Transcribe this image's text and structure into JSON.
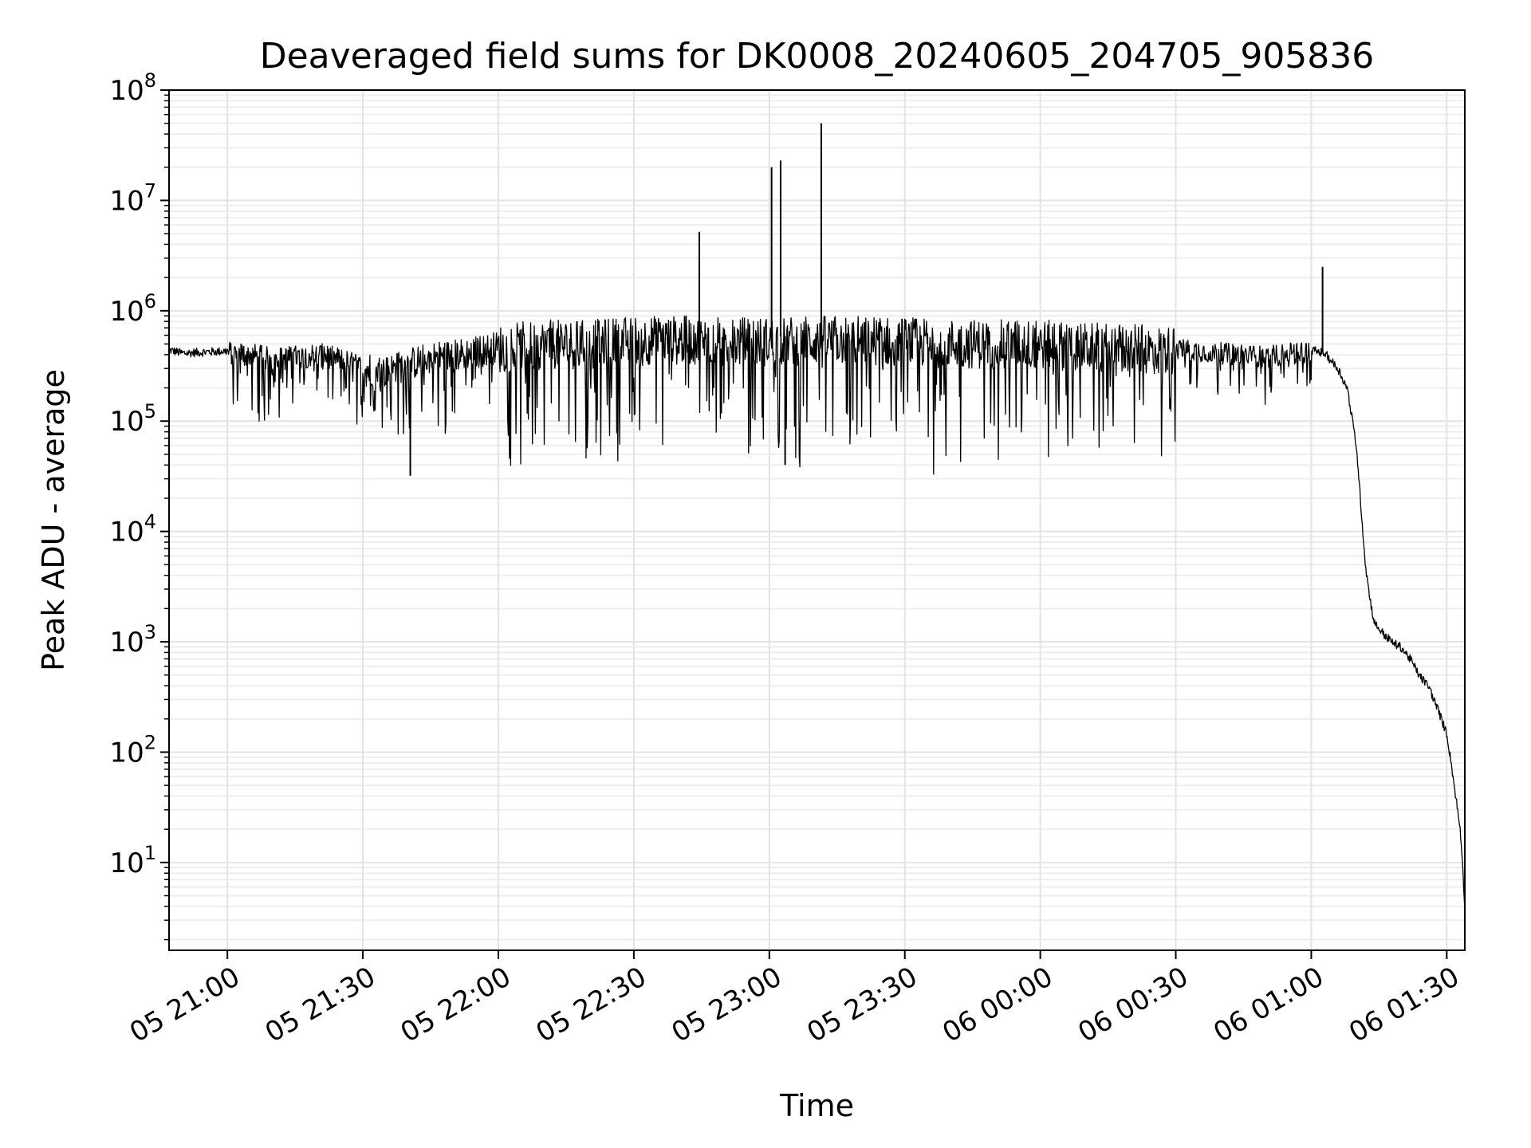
{
  "chart_data": {
    "type": "line",
    "title": "Deaveraged field sums for DK0008_20240605_204705_905836",
    "xlabel": "Time",
    "ylabel": "Peak ADU - average",
    "y_scale": "log",
    "ylim": [
      1.6,
      100000000
    ],
    "xlim": [
      "2024-06-05 20:47:05",
      "2024-06-06 01:34:00"
    ],
    "x_ticks": [
      "05 21:00",
      "05 21:30",
      "05 22:00",
      "05 22:30",
      "05 23:00",
      "05 23:30",
      "06 00:00",
      "06 00:30",
      "06 01:00",
      "06 01:30"
    ],
    "y_ticks": [
      "10^1",
      "10^2",
      "10^3",
      "10^4",
      "10^5",
      "10^6",
      "10^7",
      "10^8"
    ],
    "grid": true,
    "line_color": "#000000",
    "series": [
      {
        "x": [
          "2024-06-05 20:47:05",
          "2024-06-05 20:50:00",
          "2024-06-05 20:55:00",
          "2024-06-05 21:00:00",
          "2024-06-05 21:05:00",
          "2024-06-05 21:10:00",
          "2024-06-05 21:15:00",
          "2024-06-05 21:20:00",
          "2024-06-05 21:25:00",
          "2024-06-05 21:30:00",
          "2024-06-05 21:35:00",
          "2024-06-05 21:40:00",
          "2024-06-05 21:45:00",
          "2024-06-05 21:50:00",
          "2024-06-05 21:55:00",
          "2024-06-05 22:00:00",
          "2024-06-05 22:10:00",
          "2024-06-05 22:20:00",
          "2024-06-05 22:30:00",
          "2024-06-05 22:40:00",
          "2024-06-05 22:50:00",
          "2024-06-05 23:00:00",
          "2024-06-05 23:10:00",
          "2024-06-05 23:20:00",
          "2024-06-05 23:30:00",
          "2024-06-05 23:40:00",
          "2024-06-05 23:50:00",
          "2024-06-06 00:00:00",
          "2024-06-06 00:10:00",
          "2024-06-06 00:20:00",
          "2024-06-06 00:30:00",
          "2024-06-06 00:40:00",
          "2024-06-06 00:50:00",
          "2024-06-06 01:00:00",
          "2024-06-06 01:03:00",
          "2024-06-06 01:06:00",
          "2024-06-06 01:08:00",
          "2024-06-06 01:10:00",
          "2024-06-06 01:12:00",
          "2024-06-06 01:13:00",
          "2024-06-06 01:14:00",
          "2024-06-06 01:16:00",
          "2024-06-06 01:18:00",
          "2024-06-06 01:20:00",
          "2024-06-06 01:22:00",
          "2024-06-06 01:24:00",
          "2024-06-06 01:26:00",
          "2024-06-06 01:28:00",
          "2024-06-06 01:30:00",
          "2024-06-06 01:31:00",
          "2024-06-06 01:32:00",
          "2024-06-06 01:33:00",
          "2024-06-06 01:33:30",
          "2024-06-06 01:34:00"
        ],
        "y": [
          450000,
          420000,
          430000,
          440000,
          420000,
          380000,
          400000,
          420000,
          380000,
          320000,
          300000,
          350000,
          400000,
          420000,
          450000,
          500000,
          550000,
          550000,
          600000,
          600000,
          580000,
          580000,
          600000,
          600000,
          580000,
          560000,
          550000,
          550000,
          520000,
          500000,
          480000,
          430000,
          400000,
          450000,
          420000,
          300000,
          200000,
          60000,
          5000,
          2500,
          1500,
          1200,
          1000,
          900,
          700,
          500,
          400,
          250,
          150,
          80,
          40,
          20,
          10,
          4
        ]
      }
    ],
    "spikes": [
      {
        "x": "2024-06-05 21:40:30",
        "y": 32000
      },
      {
        "x": "2024-06-05 22:44:30",
        "y": 5200000
      },
      {
        "x": "2024-06-05 23:00:30",
        "y": 20000000
      },
      {
        "x": "2024-06-05 23:02:30",
        "y": 23000000
      },
      {
        "x": "2024-06-05 23:03:30",
        "y": 40000
      },
      {
        "x": "2024-06-05 23:11:30",
        "y": 50000000
      },
      {
        "x": "2024-06-06 01:02:30",
        "y": 2500000
      }
    ]
  }
}
